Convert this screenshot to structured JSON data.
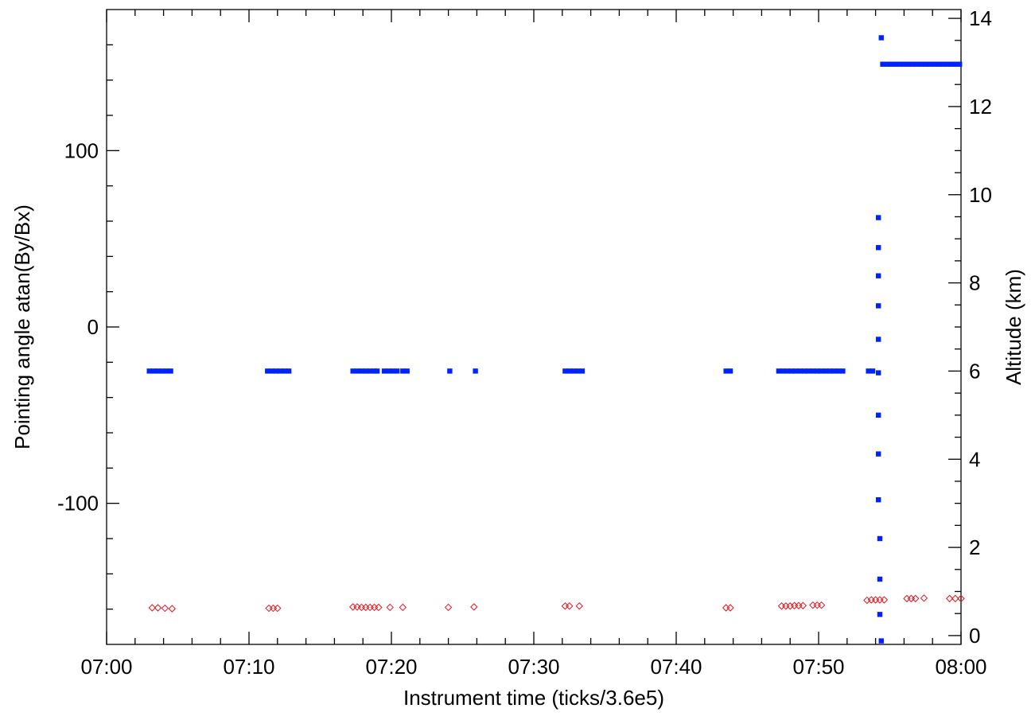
{
  "chart_data": {
    "type": "scatter",
    "title": "",
    "xlabel": "Instrument time (ticks/3.6e5)",
    "ylabel_left": "Pointing angle atan(By/Bx)",
    "ylabel_right": "Altitude (km)",
    "x_unit": "minutes after 07:00",
    "xlim": [
      0,
      60
    ],
    "ylim_left": [
      -180,
      180
    ],
    "ylim_right": [
      -0.2,
      14.2
    ],
    "x_ticks": [
      {
        "value": 0,
        "label": "07:00"
      },
      {
        "value": 10,
        "label": "07:10"
      },
      {
        "value": 20,
        "label": "07:20"
      },
      {
        "value": 30,
        "label": "07:30"
      },
      {
        "value": 40,
        "label": "07:40"
      },
      {
        "value": 50,
        "label": "07:50"
      },
      {
        "value": 60,
        "label": "08:00"
      }
    ],
    "y_left_ticks": [
      {
        "value": 100,
        "label": "100"
      },
      {
        "value": 0,
        "label": "0"
      },
      {
        "value": -100,
        "label": "-100"
      }
    ],
    "y_right_ticks": [
      {
        "value": 0,
        "label": "0"
      },
      {
        "value": 2,
        "label": "2"
      },
      {
        "value": 4,
        "label": "4"
      },
      {
        "value": 6,
        "label": "6"
      },
      {
        "value": 8,
        "label": "8"
      },
      {
        "value": 10,
        "label": "10"
      },
      {
        "value": 12,
        "label": "12"
      },
      {
        "value": 14,
        "label": "14"
      }
    ],
    "grid": false,
    "legend": "none",
    "series": [
      {
        "axis": "left",
        "marker": "square",
        "color": "#0022ff",
        "points": [
          [
            3.0,
            -25
          ],
          [
            3.3,
            -25
          ],
          [
            3.6,
            -25
          ],
          [
            3.9,
            -25
          ],
          [
            4.2,
            -25
          ],
          [
            4.5,
            -25
          ],
          [
            11.3,
            -25
          ],
          [
            11.6,
            -25
          ],
          [
            11.9,
            -25
          ],
          [
            12.2,
            -25
          ],
          [
            12.5,
            -25
          ],
          [
            12.8,
            -25
          ],
          [
            17.3,
            -25
          ],
          [
            17.6,
            -25
          ],
          [
            17.9,
            -25
          ],
          [
            18.2,
            -25
          ],
          [
            18.5,
            -25
          ],
          [
            18.8,
            -25
          ],
          [
            19.0,
            -25
          ],
          [
            19.5,
            -25
          ],
          [
            19.8,
            -25
          ],
          [
            20.1,
            -25
          ],
          [
            20.4,
            -25
          ],
          [
            20.8,
            -25
          ],
          [
            21.1,
            -25
          ],
          [
            24.1,
            -25
          ],
          [
            25.9,
            -25
          ],
          [
            32.2,
            -25
          ],
          [
            32.5,
            -25
          ],
          [
            32.8,
            -25
          ],
          [
            33.1,
            -25
          ],
          [
            33.4,
            -25
          ],
          [
            43.5,
            -25
          ],
          [
            43.8,
            -25
          ],
          [
            47.2,
            -25
          ],
          [
            47.5,
            -25
          ],
          [
            47.8,
            -25
          ],
          [
            48.1,
            -25
          ],
          [
            48.4,
            -25
          ],
          [
            48.7,
            -25
          ],
          [
            49.0,
            -25
          ],
          [
            49.3,
            -25
          ],
          [
            49.6,
            -25
          ],
          [
            49.9,
            -25
          ],
          [
            50.2,
            -25
          ],
          [
            50.5,
            -25
          ],
          [
            50.8,
            -25
          ],
          [
            51.1,
            -25
          ],
          [
            51.4,
            -25
          ],
          [
            51.7,
            -25
          ],
          [
            53.5,
            -25
          ],
          [
            53.8,
            -25
          ],
          [
            54.2,
            62
          ],
          [
            54.2,
            45
          ],
          [
            54.2,
            29
          ],
          [
            54.2,
            12
          ],
          [
            54.2,
            -7
          ],
          [
            54.2,
            -26
          ],
          [
            54.2,
            -50
          ],
          [
            54.2,
            -72
          ],
          [
            54.2,
            -98
          ],
          [
            54.3,
            -120
          ],
          [
            54.3,
            -143
          ],
          [
            54.3,
            -163
          ],
          [
            54.4,
            -178
          ],
          [
            54.4,
            164
          ],
          [
            54.5,
            149
          ],
          [
            54.8,
            149
          ],
          [
            55.1,
            149
          ],
          [
            55.4,
            149
          ],
          [
            55.7,
            149
          ],
          [
            56.0,
            149
          ],
          [
            56.3,
            149
          ],
          [
            56.6,
            149
          ],
          [
            56.9,
            149
          ],
          [
            57.2,
            149
          ],
          [
            57.5,
            149
          ],
          [
            57.8,
            149
          ],
          [
            58.1,
            149
          ],
          [
            58.4,
            149
          ],
          [
            58.7,
            149
          ],
          [
            59.0,
            149
          ],
          [
            59.3,
            149
          ],
          [
            59.6,
            149
          ],
          [
            59.9,
            149
          ]
        ]
      },
      {
        "axis": "right",
        "marker": "diamond",
        "color": "#e8141e",
        "points": [
          [
            3.2,
            0.63
          ],
          [
            3.6,
            0.63
          ],
          [
            4.1,
            0.62
          ],
          [
            4.6,
            0.61
          ],
          [
            11.4,
            0.62
          ],
          [
            11.7,
            0.62
          ],
          [
            12.0,
            0.62
          ],
          [
            17.3,
            0.65
          ],
          [
            17.6,
            0.65
          ],
          [
            17.9,
            0.64
          ],
          [
            18.2,
            0.64
          ],
          [
            18.5,
            0.64
          ],
          [
            18.8,
            0.64
          ],
          [
            19.1,
            0.64
          ],
          [
            19.9,
            0.64
          ],
          [
            20.8,
            0.64
          ],
          [
            24.0,
            0.64
          ],
          [
            25.8,
            0.65
          ],
          [
            32.2,
            0.67
          ],
          [
            32.5,
            0.67
          ],
          [
            33.2,
            0.67
          ],
          [
            43.5,
            0.63
          ],
          [
            43.8,
            0.63
          ],
          [
            47.4,
            0.67
          ],
          [
            47.7,
            0.67
          ],
          [
            48.0,
            0.67
          ],
          [
            48.3,
            0.68
          ],
          [
            48.6,
            0.68
          ],
          [
            48.9,
            0.68
          ],
          [
            49.6,
            0.69
          ],
          [
            49.9,
            0.69
          ],
          [
            50.2,
            0.69
          ],
          [
            53.4,
            0.8
          ],
          [
            53.7,
            0.81
          ],
          [
            54.0,
            0.81
          ],
          [
            54.3,
            0.81
          ],
          [
            54.6,
            0.81
          ],
          [
            56.2,
            0.84
          ],
          [
            56.5,
            0.84
          ],
          [
            56.8,
            0.84
          ],
          [
            57.4,
            0.85
          ],
          [
            59.2,
            0.84
          ],
          [
            59.6,
            0.84
          ],
          [
            60.0,
            0.84
          ]
        ]
      }
    ]
  }
}
